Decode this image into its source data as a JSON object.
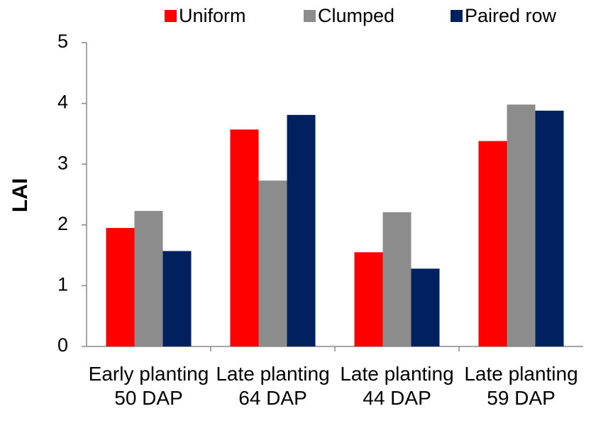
{
  "chart_data": {
    "type": "bar",
    "y_label": "LAI",
    "categories": [
      "Early planting 50 DAP",
      "Late planting 64 DAP",
      "Late planting 44 DAP",
      "Late planting 59 DAP"
    ],
    "series": [
      {
        "name": "Uniform",
        "color": "#ff0000",
        "values": [
          1.95,
          3.57,
          1.55,
          3.38
        ]
      },
      {
        "name": "Clumped",
        "color": "#8c8c8c",
        "values": [
          2.23,
          2.73,
          2.21,
          3.98
        ]
      },
      {
        "name": "Paired row",
        "color": "#002060",
        "values": [
          1.57,
          3.81,
          1.28,
          3.88
        ]
      }
    ],
    "ylim": [
      0,
      5
    ],
    "yticks": [
      0,
      1,
      2,
      3,
      4,
      5
    ],
    "grid": false,
    "legend": "top"
  }
}
